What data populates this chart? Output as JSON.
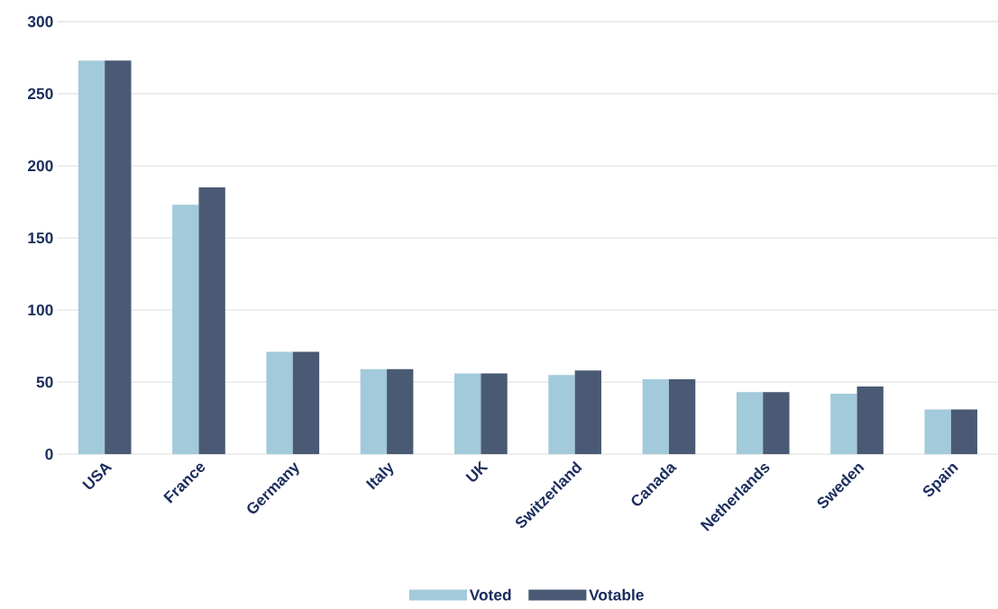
{
  "chart_data": {
    "type": "bar",
    "categories": [
      "USA",
      "France",
      "Germany",
      "Italy",
      "UK",
      "Switzerland",
      "Canada",
      "Netherlands",
      "Sweden",
      "Spain"
    ],
    "series": [
      {
        "name": "Voted",
        "color": "#a2cadb",
        "values": [
          273,
          173,
          71,
          59,
          56,
          55,
          52,
          43,
          42,
          31
        ]
      },
      {
        "name": "Votable",
        "color": "#4a5a74",
        "values": [
          273,
          185,
          71,
          59,
          56,
          58,
          52,
          43,
          47,
          31
        ]
      }
    ],
    "ylim": [
      0,
      300
    ],
    "yticks": [
      0,
      50,
      100,
      150,
      200,
      250,
      300
    ],
    "grid": "y",
    "legend": "bottom"
  }
}
